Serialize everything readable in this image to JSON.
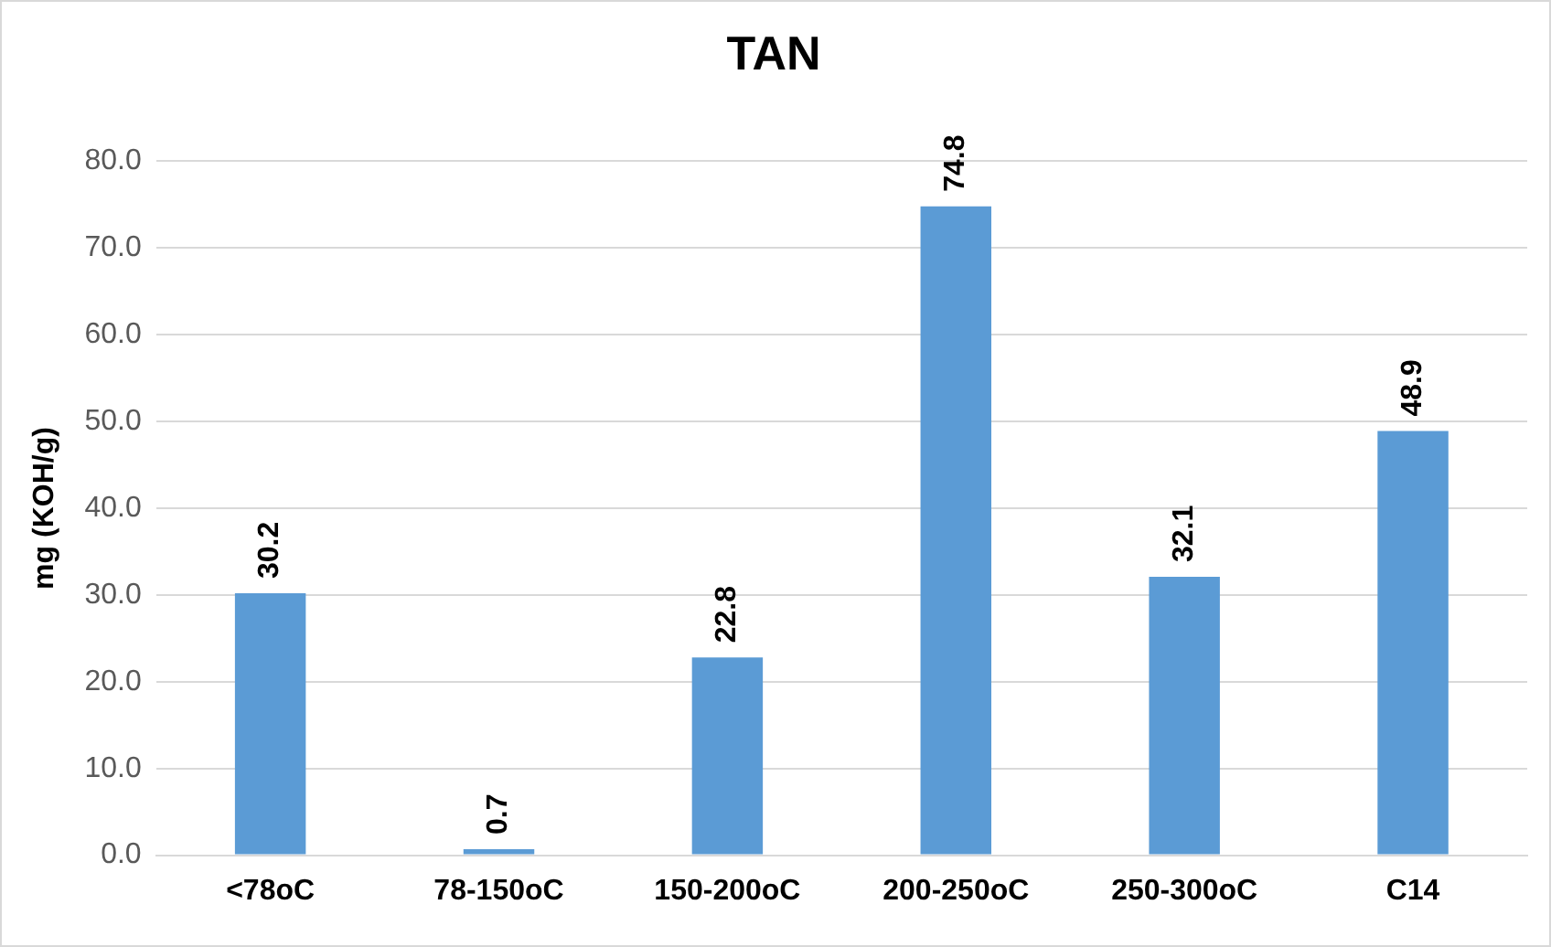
{
  "chart_data": {
    "type": "bar",
    "title": "TAN",
    "ylabel": "mg (KOH/g)",
    "categories": [
      "<78oC",
      "78-150oC",
      "150-200oC",
      "200-250oC",
      "250-300oC",
      "C14"
    ],
    "values": [
      30.2,
      0.7,
      22.8,
      74.8,
      32.1,
      48.9
    ],
    "color": "#5b9bd5",
    "ylim": [
      0,
      80
    ],
    "yticks": [
      {
        "value": 0,
        "label": "0.0"
      },
      {
        "value": 10,
        "label": "10.0"
      },
      {
        "value": 20,
        "label": "20.0"
      },
      {
        "value": 30,
        "label": "30.0"
      },
      {
        "value": 40,
        "label": "40.0"
      },
      {
        "value": 50,
        "label": "50.0"
      },
      {
        "value": 60,
        "label": "60.0"
      },
      {
        "value": 70,
        "label": "70.0"
      },
      {
        "value": 80,
        "label": "80.0"
      }
    ],
    "grid": "y",
    "legend": false,
    "data_labels": true
  }
}
